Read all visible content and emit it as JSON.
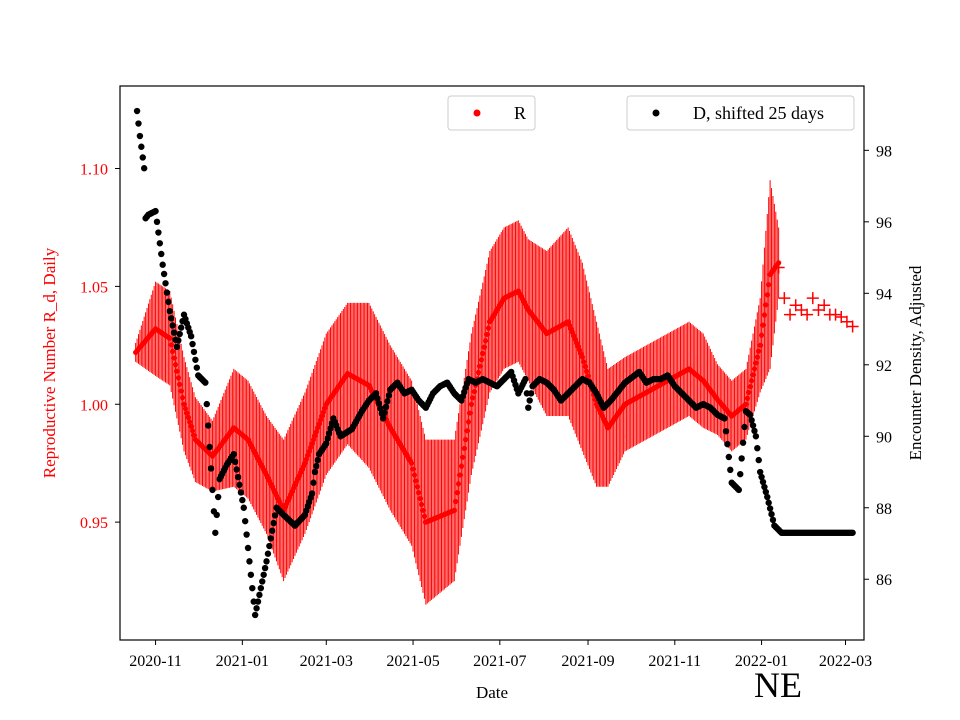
{
  "chart_data": {
    "type": "scatter",
    "xlabel": "Date",
    "ylabel_left": "Reproductive Number R_d, Daily",
    "ylabel_right": "Encounter Density, Adjusted",
    "state_tag": "NE",
    "legend": {
      "r_label": "R",
      "d_label": "D, shifted 25 days",
      "r_placement": "top-center",
      "d_placement": "top-right"
    },
    "colors": {
      "r": "#ff0000",
      "d": "#000000",
      "axis": "#000000",
      "left_axis_text": "#ff0000"
    },
    "xlim_days": [
      -25,
      498
    ],
    "ylim_left": [
      0.9,
      1.135
    ],
    "ylim_right": [
      84.3,
      99.8
    ],
    "x_ticks": [
      {
        "label": "2020-11",
        "day": 0
      },
      {
        "label": "2021-01",
        "day": 61
      },
      {
        "label": "2021-03",
        "day": 120
      },
      {
        "label": "2021-05",
        "day": 181
      },
      {
        "label": "2021-07",
        "day": 242
      },
      {
        "label": "2021-09",
        "day": 304
      },
      {
        "label": "2021-11",
        "day": 365
      },
      {
        "label": "2022-01",
        "day": 426
      },
      {
        "label": "2022-03",
        "day": 485
      }
    ],
    "y_ticks_left": [
      {
        "label": "0.95",
        "value": 0.95
      },
      {
        "label": "1.00",
        "value": 1.0
      },
      {
        "label": "1.05",
        "value": 1.05
      },
      {
        "label": "1.10",
        "value": 1.1
      }
    ],
    "y_ticks_right": [
      {
        "label": "86",
        "value": 86
      },
      {
        "label": "88",
        "value": 88
      },
      {
        "label": "90",
        "value": 90
      },
      {
        "label": "92",
        "value": 92
      },
      {
        "label": "94",
        "value": 94
      },
      {
        "label": "96",
        "value": 96
      },
      {
        "label": "98",
        "value": 98
      }
    ],
    "series": [
      {
        "name": "R",
        "axis": "left",
        "marker": "dot",
        "day_range": [
          -14,
          438
        ],
        "error_bars": true,
        "x": [
          -14,
          0,
          10,
          20,
          28,
          40,
          55,
          65,
          78,
          90,
          105,
          120,
          135,
          150,
          165,
          180,
          190,
          210,
          222,
          235,
          245,
          255,
          262,
          275,
          290,
          300,
          310,
          318,
          330,
          345,
          360,
          375,
          385,
          395,
          405,
          415,
          425,
          432,
          438
        ],
        "y": [
          1.022,
          1.032,
          1.028,
          1.0,
          0.985,
          0.978,
          0.99,
          0.985,
          0.97,
          0.955,
          0.975,
          1.0,
          1.013,
          1.008,
          0.99,
          0.975,
          0.95,
          0.955,
          1.0,
          1.035,
          1.045,
          1.048,
          1.04,
          1.03,
          1.035,
          1.02,
          1.0,
          0.99,
          1.0,
          1.005,
          1.01,
          1.015,
          1.01,
          1.002,
          0.995,
          1.0,
          1.025,
          1.055,
          1.06
        ],
        "err": [
          0.004,
          0.02,
          0.02,
          0.02,
          0.018,
          0.015,
          0.025,
          0.025,
          0.025,
          0.03,
          0.03,
          0.03,
          0.03,
          0.035,
          0.035,
          0.035,
          0.035,
          0.03,
          0.03,
          0.03,
          0.03,
          0.03,
          0.03,
          0.035,
          0.04,
          0.04,
          0.035,
          0.025,
          0.02,
          0.02,
          0.02,
          0.02,
          0.02,
          0.015,
          0.015,
          0.015,
          0.02,
          0.04,
          0.015
        ]
      },
      {
        "name": "R",
        "axis": "left",
        "marker": "plus",
        "x": [
          438,
          442,
          446,
          450,
          454,
          458,
          462,
          466,
          470,
          474,
          478,
          482,
          486,
          490
        ],
        "y": [
          1.058,
          1.045,
          1.038,
          1.042,
          1.04,
          1.038,
          1.045,
          1.04,
          1.042,
          1.038,
          1.038,
          1.037,
          1.035,
          1.033
        ]
      },
      {
        "name": "D, shifted 25 days",
        "axis": "right",
        "marker": "dot",
        "x": [
          -13,
          -11,
          -8,
          -7,
          -5,
          0,
          5,
          10,
          15,
          20,
          25,
          30,
          35,
          40,
          42,
          45,
          50,
          55,
          62,
          70,
          78,
          85,
          90,
          98,
          105,
          110,
          112,
          115,
          120,
          125,
          130,
          138,
          145,
          150,
          155,
          160,
          165,
          170,
          175,
          180,
          185,
          190,
          195,
          200,
          205,
          210,
          215,
          220,
          225,
          230,
          235,
          240,
          245,
          250,
          255,
          260,
          262,
          265,
          270,
          275,
          280,
          285,
          290,
          295,
          300,
          305,
          310,
          315,
          320,
          330,
          340,
          345,
          350,
          355,
          360,
          365,
          370,
          375,
          380,
          385,
          390,
          395,
          400,
          405,
          410,
          415,
          418,
          420,
          422,
          425,
          430,
          435,
          440,
          442,
          444,
          446,
          448,
          450,
          455,
          460,
          465,
          470,
          475,
          480,
          485,
          490
        ],
        "y": [
          99.1,
          98.4,
          97.5,
          96.1,
          96.2,
          96.3,
          94.8,
          93.5,
          92.5,
          93.4,
          92.8,
          91.7,
          91.5,
          88.5,
          87.3,
          88.8,
          89.2,
          89.5,
          88.0,
          85.0,
          86.5,
          88.0,
          87.8,
          87.5,
          87.8,
          88.4,
          89.0,
          89.5,
          89.8,
          90.5,
          90.0,
          90.2,
          90.7,
          91.0,
          91.2,
          90.5,
          91.3,
          91.5,
          91.2,
          91.3,
          91.0,
          90.8,
          91.2,
          91.4,
          91.5,
          91.2,
          91.0,
          91.6,
          91.5,
          91.6,
          91.5,
          91.4,
          91.6,
          91.8,
          91.2,
          91.6,
          90.8,
          91.4,
          91.6,
          91.5,
          91.3,
          91.0,
          91.2,
          91.4,
          91.6,
          91.5,
          91.2,
          90.8,
          91.0,
          91.5,
          91.8,
          91.5,
          91.6,
          91.6,
          91.7,
          91.4,
          91.2,
          91.0,
          90.8,
          90.9,
          90.8,
          90.6,
          90.5,
          88.7,
          88.5,
          90.7,
          90.6,
          90.3,
          90.0,
          89.0,
          88.3,
          87.5,
          87.3,
          87.3,
          87.3,
          87.3,
          87.3,
          87.3,
          87.3,
          87.3,
          87.3,
          87.3,
          87.3,
          87.3,
          87.3,
          87.3
        ]
      }
    ]
  }
}
